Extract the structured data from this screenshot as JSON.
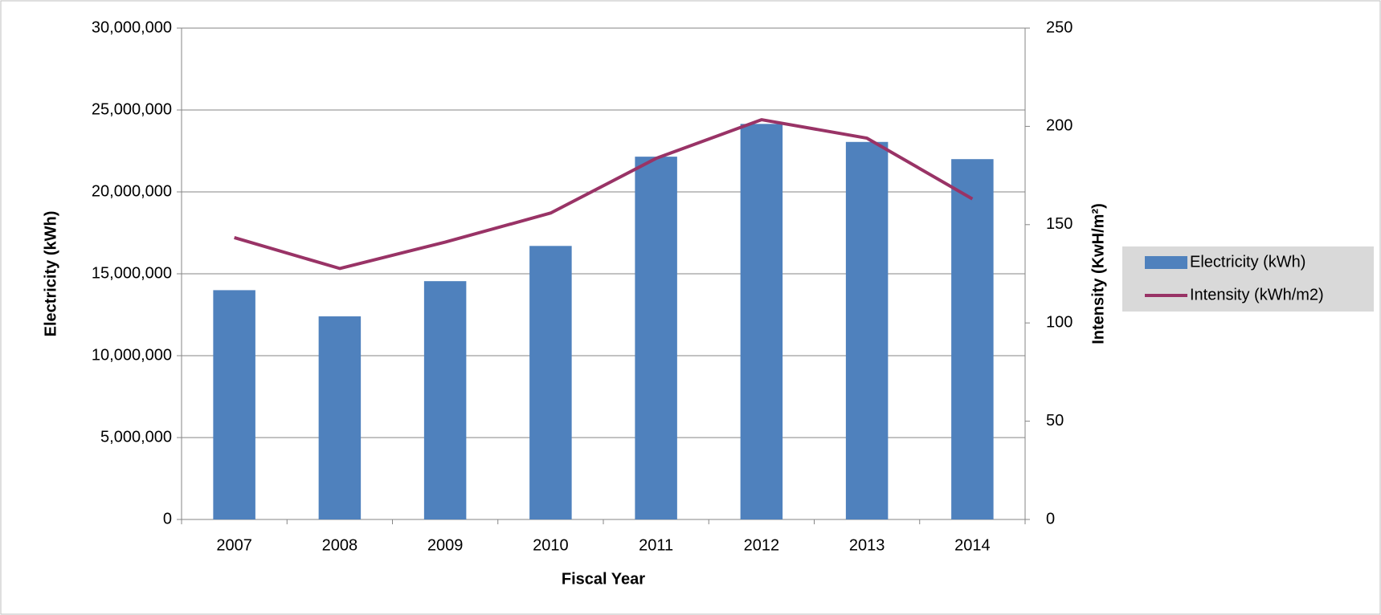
{
  "chart_data": {
    "type": "bar_line",
    "x_label": "Fiscal Year",
    "y_label": "Electricity (kWh)",
    "y2_label": "Intensity (KwH/m²)",
    "categories": [
      "2007",
      "2008",
      "2009",
      "2010",
      "2011",
      "2012",
      "2013",
      "2014"
    ],
    "series": [
      {
        "name": "Electricity (kWh)",
        "type": "bar",
        "color": "#4f81bd",
        "values": [
          14000000,
          12400000,
          14550000,
          16700000,
          22150000,
          24150000,
          23050000,
          22000000
        ]
      },
      {
        "name": "Intensity (kWh/m2)",
        "type": "line",
        "axis": "y2",
        "color": "#993366",
        "values": [
          143.4,
          127.7,
          141.1,
          155.9,
          183.7,
          203.4,
          194.0,
          163.1
        ]
      }
    ],
    "ylim": [
      0,
      30000000
    ],
    "yticks": [
      {
        "value": 0,
        "label": "0"
      },
      {
        "value": 5000000,
        "label": "5,000,000"
      },
      {
        "value": 10000000,
        "label": "10,000,000"
      },
      {
        "value": 15000000,
        "label": "15,000,000"
      },
      {
        "value": 20000000,
        "label": "20,000,000"
      },
      {
        "value": 25000000,
        "label": "25,000,000"
      },
      {
        "value": 30000000,
        "label": "30,000,000"
      }
    ],
    "y2lim": [
      0,
      250
    ],
    "y2ticks": [
      0,
      50,
      100,
      150,
      200,
      250
    ],
    "grid": true,
    "legend": "right"
  }
}
